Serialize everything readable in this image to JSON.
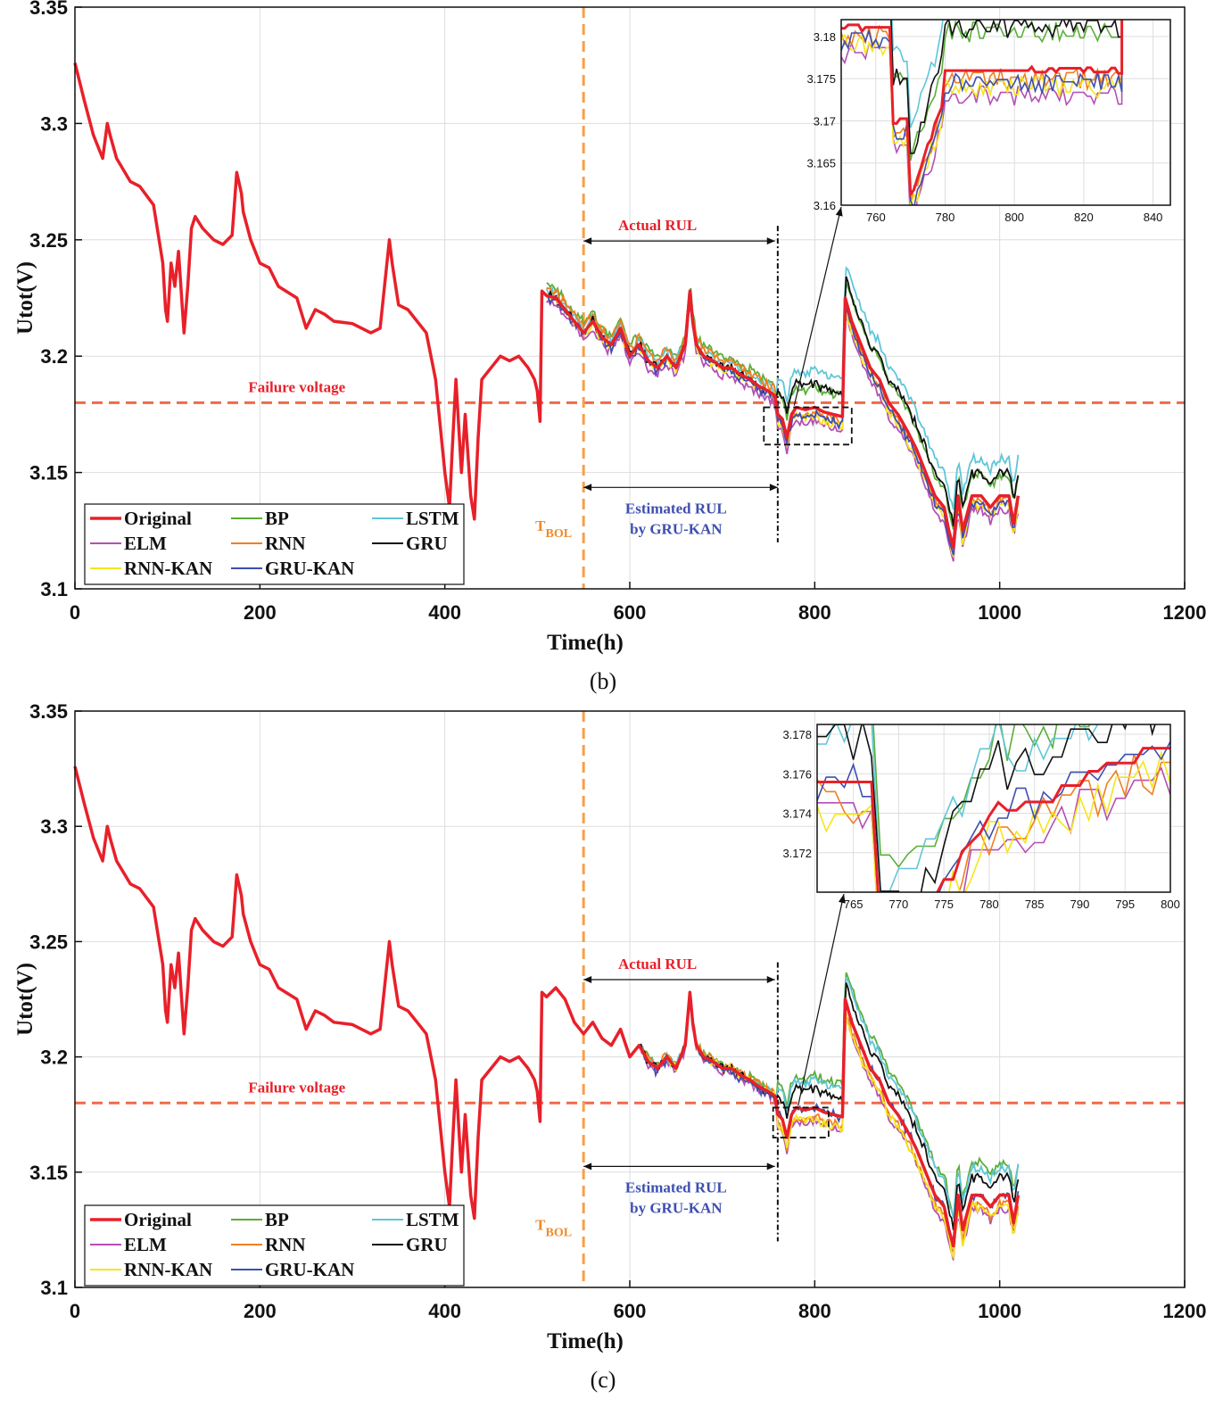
{
  "chart_data": [
    {
      "panel": "b",
      "type": "line",
      "caption": "(b)",
      "xlabel": "Time(h)",
      "ylabel": "Utot(V)",
      "xlim": [
        0,
        1200
      ],
      "ylim": [
        3.1,
        3.35
      ],
      "xticks": [
        "0",
        "200",
        "400",
        "600",
        "800",
        "1000",
        "1200"
      ],
      "yticks": [
        "3.1",
        "3.15",
        "3.2",
        "3.25",
        "3.3",
        "3.35"
      ],
      "grid": true,
      "legend_position": "bottom-left",
      "failure_voltage": 3.18,
      "failure_label": "Failure voltage",
      "t_bol": 550,
      "t_bol_label": "T",
      "t_bol_sub": "BOL",
      "actual_rul_label": "Actual RUL",
      "actual_rul_range": [
        550,
        757
      ],
      "estimated_rul_label": [
        "Estimated RUL",
        "by GRU-KAN"
      ],
      "estimated_rul_range": [
        550,
        760
      ],
      "zoom_box_range": {
        "x": [
          745,
          840
        ],
        "y": [
          3.162,
          3.178
        ]
      },
      "inset": {
        "xlim": [
          750,
          845
        ],
        "ylim": [
          3.16,
          3.182
        ],
        "xticks": [
          "760",
          "780",
          "800",
          "820",
          "840"
        ],
        "yticks": [
          "3.16",
          "3.165",
          "3.17",
          "3.175",
          "3.18"
        ]
      },
      "original": {
        "name": "Original",
        "color": "#e8202a",
        "x": [
          0,
          10,
          20,
          30,
          35,
          38,
          45,
          60,
          70,
          85,
          95,
          98,
          100,
          104,
          108,
          112,
          118,
          122,
          126,
          130,
          138,
          150,
          160,
          170,
          175,
          180,
          182,
          190,
          200,
          210,
          220,
          240,
          250,
          260,
          270,
          280,
          300,
          320,
          330,
          340,
          343,
          350,
          360,
          370,
          380,
          390,
          395,
          400,
          405,
          408,
          412,
          418,
          422,
          428,
          432,
          436,
          440,
          450,
          460,
          470,
          480,
          490,
          497,
          500,
          503,
          505,
          510,
          520,
          530,
          540,
          550,
          560,
          570,
          580,
          590,
          600,
          610,
          620,
          630,
          640,
          650,
          660,
          665,
          668,
          672,
          680,
          690,
          700,
          710,
          720,
          730,
          740,
          750,
          757,
          760,
          765,
          770,
          775,
          780,
          790,
          800,
          810,
          820,
          830,
          833,
          840,
          850,
          860,
          870,
          880,
          890,
          900,
          910,
          920,
          930,
          940,
          945,
          950,
          955,
          960,
          970,
          980,
          990,
          1000,
          1010,
          1015,
          1020
        ],
        "y": [
          3.326,
          3.31,
          3.295,
          3.285,
          3.3,
          3.295,
          3.285,
          3.275,
          3.273,
          3.265,
          3.24,
          3.22,
          3.215,
          3.24,
          3.23,
          3.245,
          3.21,
          3.23,
          3.255,
          3.26,
          3.255,
          3.25,
          3.248,
          3.252,
          3.279,
          3.27,
          3.262,
          3.25,
          3.24,
          3.238,
          3.23,
          3.225,
          3.212,
          3.22,
          3.218,
          3.215,
          3.214,
          3.21,
          3.212,
          3.25,
          3.24,
          3.222,
          3.22,
          3.215,
          3.21,
          3.19,
          3.17,
          3.15,
          3.135,
          3.16,
          3.19,
          3.15,
          3.175,
          3.14,
          3.13,
          3.165,
          3.19,
          3.195,
          3.2,
          3.198,
          3.2,
          3.195,
          3.19,
          3.185,
          3.172,
          3.228,
          3.226,
          3.225,
          3.22,
          3.215,
          3.21,
          3.215,
          3.208,
          3.205,
          3.212,
          3.2,
          3.205,
          3.198,
          3.195,
          3.2,
          3.195,
          3.205,
          3.228,
          3.215,
          3.205,
          3.2,
          3.198,
          3.195,
          3.195,
          3.192,
          3.19,
          3.187,
          3.185,
          3.183,
          3.175,
          3.173,
          3.165,
          3.175,
          3.178,
          3.177,
          3.178,
          3.176,
          3.175,
          3.174,
          3.225,
          3.215,
          3.205,
          3.195,
          3.19,
          3.18,
          3.175,
          3.168,
          3.16,
          3.15,
          3.14,
          3.135,
          3.125,
          3.118,
          3.14,
          3.125,
          3.14,
          3.14,
          3.135,
          3.14,
          3.14,
          3.128,
          3.14
        ]
      },
      "predictions": [
        {
          "name": "BP",
          "color": "#5aae3a",
          "offset": [
            0.004,
            0.009
          ]
        },
        {
          "name": "LSTM",
          "color": "#5fc6d8",
          "offset": [
            0.002,
            0.016
          ]
        },
        {
          "name": "ELM",
          "color": "#b44fb5",
          "offset": [
            -0.003,
            -0.006
          ]
        },
        {
          "name": "RNN",
          "color": "#f07f1f",
          "offset": [
            0.003,
            -0.002
          ]
        },
        {
          "name": "GRU",
          "color": "#111111",
          "offset": [
            0.0,
            0.01
          ]
        },
        {
          "name": "RNN-KAN",
          "color": "#f5e51b",
          "offset": [
            -0.001,
            -0.004
          ]
        },
        {
          "name": "GRU-KAN",
          "color": "#3d4fb0",
          "offset": [
            -0.001,
            -0.003
          ]
        }
      ],
      "pred_start": 510,
      "legend_order": [
        "Original",
        "BP",
        "LSTM",
        "ELM",
        "RNN",
        "GRU",
        "RNN-KAN",
        "GRU-KAN"
      ]
    },
    {
      "panel": "c",
      "type": "line",
      "caption": "(c)",
      "xlabel": "Time(h)",
      "ylabel": "Utot(V)",
      "xlim": [
        0,
        1200
      ],
      "ylim": [
        3.1,
        3.35
      ],
      "xticks": [
        "0",
        "200",
        "400",
        "600",
        "800",
        "1000",
        "1200"
      ],
      "yticks": [
        "3.1",
        "3.15",
        "3.2",
        "3.25",
        "3.3",
        "3.35"
      ],
      "grid": true,
      "legend_position": "bottom-left",
      "failure_voltage": 3.18,
      "failure_label": "Failure voltage",
      "t_bol": 550,
      "t_bol_label": "T",
      "t_bol_sub": "BOL",
      "actual_rul_label": "Actual RUL",
      "actual_rul_range": [
        550,
        757
      ],
      "estimated_rul_label": [
        "Estimated RUL",
        "by GRU-KAN"
      ],
      "estimated_rul_range": [
        550,
        757
      ],
      "zoom_box_range": {
        "x": [
          755,
          815
        ],
        "y": [
          3.165,
          3.178
        ]
      },
      "inset": {
        "xlim": [
          761,
          800
        ],
        "ylim": [
          3.17,
          3.1785
        ],
        "xticks": [
          "765",
          "770",
          "775",
          "780",
          "785",
          "790",
          "795",
          "800"
        ],
        "yticks": [
          "3.172",
          "3.174",
          "3.176",
          "3.178"
        ]
      },
      "original": {
        "name": "Original",
        "color": "#e8202a",
        "x": [
          0,
          10,
          20,
          30,
          35,
          38,
          45,
          60,
          70,
          85,
          95,
          98,
          100,
          104,
          108,
          112,
          118,
          122,
          126,
          130,
          138,
          150,
          160,
          170,
          175,
          180,
          182,
          190,
          200,
          210,
          220,
          240,
          250,
          260,
          270,
          280,
          300,
          320,
          330,
          340,
          343,
          350,
          360,
          370,
          380,
          390,
          395,
          400,
          405,
          408,
          412,
          418,
          422,
          428,
          432,
          436,
          440,
          450,
          460,
          470,
          480,
          490,
          497,
          500,
          503,
          505,
          510,
          520,
          530,
          540,
          550,
          560,
          570,
          580,
          590,
          600,
          610,
          620,
          630,
          640,
          650,
          660,
          665,
          668,
          672,
          680,
          690,
          700,
          710,
          720,
          730,
          740,
          750,
          757,
          760,
          765,
          770,
          775,
          780,
          790,
          800,
          810,
          820,
          830,
          833,
          840,
          850,
          860,
          870,
          880,
          890,
          900,
          910,
          920,
          930,
          940,
          945,
          950,
          955,
          960,
          970,
          980,
          990,
          1000,
          1010,
          1015,
          1020
        ],
        "y": [
          3.326,
          3.31,
          3.295,
          3.285,
          3.3,
          3.295,
          3.285,
          3.275,
          3.273,
          3.265,
          3.24,
          3.22,
          3.215,
          3.24,
          3.23,
          3.245,
          3.21,
          3.23,
          3.255,
          3.26,
          3.255,
          3.25,
          3.248,
          3.252,
          3.279,
          3.27,
          3.262,
          3.25,
          3.24,
          3.238,
          3.23,
          3.225,
          3.212,
          3.22,
          3.218,
          3.215,
          3.214,
          3.21,
          3.212,
          3.25,
          3.24,
          3.222,
          3.22,
          3.215,
          3.21,
          3.19,
          3.17,
          3.15,
          3.135,
          3.16,
          3.19,
          3.15,
          3.175,
          3.14,
          3.13,
          3.165,
          3.19,
          3.195,
          3.2,
          3.198,
          3.2,
          3.195,
          3.19,
          3.185,
          3.172,
          3.228,
          3.226,
          3.23,
          3.225,
          3.215,
          3.21,
          3.215,
          3.208,
          3.205,
          3.212,
          3.2,
          3.205,
          3.198,
          3.195,
          3.2,
          3.195,
          3.205,
          3.228,
          3.215,
          3.205,
          3.2,
          3.198,
          3.195,
          3.195,
          3.192,
          3.19,
          3.187,
          3.185,
          3.183,
          3.175,
          3.173,
          3.165,
          3.175,
          3.178,
          3.177,
          3.178,
          3.176,
          3.175,
          3.174,
          3.225,
          3.215,
          3.205,
          3.195,
          3.19,
          3.18,
          3.175,
          3.168,
          3.16,
          3.15,
          3.14,
          3.135,
          3.125,
          3.118,
          3.14,
          3.125,
          3.14,
          3.14,
          3.135,
          3.14,
          3.14,
          3.128,
          3.14
        ]
      },
      "predictions": [
        {
          "name": "BP",
          "color": "#5aae3a",
          "offset": [
            0.001,
            0.014
          ]
        },
        {
          "name": "LSTM",
          "color": "#5fc6d8",
          "offset": [
            0.0,
            0.012
          ]
        },
        {
          "name": "ELM",
          "color": "#b44fb5",
          "offset": [
            -0.001,
            -0.006
          ]
        },
        {
          "name": "RNN",
          "color": "#f07f1f",
          "offset": [
            0.001,
            -0.004
          ]
        },
        {
          "name": "GRU",
          "color": "#111111",
          "offset": [
            0.0,
            0.008
          ]
        },
        {
          "name": "RNN-KAN",
          "color": "#f5e51b",
          "offset": [
            0.0,
            -0.005
          ]
        },
        {
          "name": "GRU-KAN",
          "color": "#3d4fb0",
          "offset": [
            -0.001,
            0.0
          ]
        }
      ],
      "pred_start": 612,
      "legend_order": [
        "Original",
        "BP",
        "LSTM",
        "ELM",
        "RNN",
        "GRU",
        "RNN-KAN",
        "GRU-KAN"
      ]
    }
  ]
}
